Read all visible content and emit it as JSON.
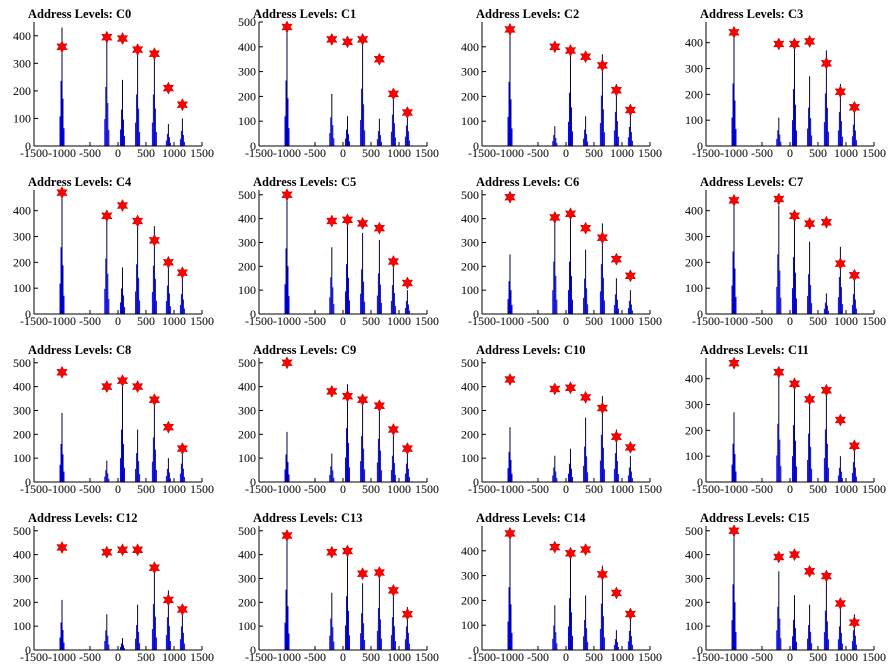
{
  "colors": {
    "bar": "#0000ff",
    "bar_dark": "#00003a",
    "marker": "#ff0000",
    "axis": "#000000"
  },
  "chart_data": [
    {
      "type": "bar",
      "title": "Address Levels: C0",
      "xlabel": "",
      "ylabel": "",
      "xlim": [
        -1500,
        1500
      ],
      "ylim": [
        0,
        450
      ],
      "xticks": [
        "-1500",
        "-1000",
        "-500",
        "0",
        "500",
        "1000",
        "1500"
      ],
      "yticks": [
        "0",
        "100",
        "200",
        "300",
        "400"
      ],
      "groups": [
        {
          "x": -1000,
          "peak": 430,
          "marker": 360
        },
        {
          "x": -200,
          "peak": 390,
          "marker": 395
        },
        {
          "x": 80,
          "peak": 240,
          "marker": 390
        },
        {
          "x": 350,
          "peak": 340,
          "marker": 350
        },
        {
          "x": 650,
          "peak": 340,
          "marker": 335
        },
        {
          "x": 900,
          "peak": 80,
          "marker": 210
        },
        {
          "x": 1150,
          "peak": 100,
          "marker": 150
        }
      ]
    },
    {
      "type": "bar",
      "title": "Address Levels: C1",
      "xlabel": "",
      "ylabel": "",
      "xlim": [
        -1500,
        1500
      ],
      "ylim": [
        0,
        500
      ],
      "xticks": [
        "-1500",
        "-1000",
        "-500",
        "0",
        "500",
        "1000",
        "1500"
      ],
      "yticks": [
        "0",
        "100",
        "200",
        "300",
        "400",
        "500"
      ],
      "groups": [
        {
          "x": -1000,
          "peak": 480,
          "marker": 480
        },
        {
          "x": -200,
          "peak": 210,
          "marker": 430
        },
        {
          "x": 80,
          "peak": 120,
          "marker": 420
        },
        {
          "x": 350,
          "peak": 420,
          "marker": 430
        },
        {
          "x": 650,
          "peak": 110,
          "marker": 350
        },
        {
          "x": 900,
          "peak": 230,
          "marker": 210
        },
        {
          "x": 1150,
          "peak": 150,
          "marker": 135
        }
      ]
    },
    {
      "type": "bar",
      "title": "Address Levels: C2",
      "xlabel": "",
      "ylabel": "",
      "xlim": [
        -1500,
        1500
      ],
      "ylim": [
        0,
        500
      ],
      "xticks": [
        "-1500",
        "-1000",
        "-500",
        "0",
        "500",
        "1000",
        "1500"
      ],
      "yticks": [
        "0",
        "100",
        "200",
        "300",
        "400"
      ],
      "groups": [
        {
          "x": -1000,
          "peak": 470,
          "marker": 470
        },
        {
          "x": -200,
          "peak": 80,
          "marker": 400
        },
        {
          "x": 80,
          "peak": 390,
          "marker": 385
        },
        {
          "x": 350,
          "peak": 120,
          "marker": 360
        },
        {
          "x": 650,
          "peak": 370,
          "marker": 325
        },
        {
          "x": 900,
          "peak": 250,
          "marker": 225
        },
        {
          "x": 1150,
          "peak": 140,
          "marker": 145
        }
      ]
    },
    {
      "type": "bar",
      "title": "Address Levels: C3",
      "xlabel": "",
      "ylabel": "",
      "xlim": [
        -1500,
        1500
      ],
      "ylim": [
        0,
        480
      ],
      "xticks": [
        "-1500",
        "-1000",
        "-500",
        "0",
        "500",
        "1000",
        "1500"
      ],
      "yticks": [
        "0",
        "100",
        "200",
        "300",
        "400"
      ],
      "groups": [
        {
          "x": -1000,
          "peak": 440,
          "marker": 440
        },
        {
          "x": -200,
          "peak": 110,
          "marker": 395
        },
        {
          "x": 80,
          "peak": 400,
          "marker": 395
        },
        {
          "x": 350,
          "peak": 270,
          "marker": 405
        },
        {
          "x": 650,
          "peak": 370,
          "marker": 320
        },
        {
          "x": 900,
          "peak": 240,
          "marker": 210
        },
        {
          "x": 1150,
          "peak": 150,
          "marker": 150
        }
      ]
    },
    {
      "type": "bar",
      "title": "Address Levels: C4",
      "xlabel": "",
      "ylabel": "",
      "xlim": [
        -1500,
        1500
      ],
      "ylim": [
        0,
        480
      ],
      "xticks": [
        "-1500",
        "-1000",
        "-500",
        "0",
        "500",
        "1000",
        "1500"
      ],
      "yticks": [
        "0",
        "100",
        "200",
        "300",
        "400"
      ],
      "groups": [
        {
          "x": -1000,
          "peak": 470,
          "marker": 470
        },
        {
          "x": -200,
          "peak": 390,
          "marker": 380
        },
        {
          "x": 80,
          "peak": 180,
          "marker": 420
        },
        {
          "x": 350,
          "peak": 350,
          "marker": 360
        },
        {
          "x": 650,
          "peak": 340,
          "marker": 285
        },
        {
          "x": 900,
          "peak": 200,
          "marker": 200
        },
        {
          "x": 1150,
          "peak": 140,
          "marker": 160
        }
      ]
    },
    {
      "type": "bar",
      "title": "Address Levels: C5",
      "xlabel": "",
      "ylabel": "",
      "xlim": [
        -1500,
        1500
      ],
      "ylim": [
        0,
        520
      ],
      "xticks": [
        "-1500",
        "-1000",
        "-500",
        "0",
        "500",
        "1000",
        "1500"
      ],
      "yticks": [
        "0",
        "100",
        "200",
        "300",
        "400",
        "500"
      ],
      "groups": [
        {
          "x": -1000,
          "peak": 500,
          "marker": 500
        },
        {
          "x": -200,
          "peak": 280,
          "marker": 390
        },
        {
          "x": 80,
          "peak": 380,
          "marker": 395
        },
        {
          "x": 350,
          "peak": 340,
          "marker": 380
        },
        {
          "x": 650,
          "peak": 310,
          "marker": 360
        },
        {
          "x": 900,
          "peak": 220,
          "marker": 220
        },
        {
          "x": 1150,
          "peak": 100,
          "marker": 130
        }
      ]
    },
    {
      "type": "bar",
      "title": "Address Levels: C6",
      "xlabel": "",
      "ylabel": "",
      "xlim": [
        -1500,
        1500
      ],
      "ylim": [
        0,
        520
      ],
      "xticks": [
        "-1500",
        "-1000",
        "-500",
        "0",
        "500",
        "1000",
        "1500"
      ],
      "yticks": [
        "0",
        "100",
        "200",
        "300",
        "400",
        "500"
      ],
      "groups": [
        {
          "x": -1000,
          "peak": 250,
          "marker": 490
        },
        {
          "x": -200,
          "peak": 400,
          "marker": 405
        },
        {
          "x": 80,
          "peak": 400,
          "marker": 420
        },
        {
          "x": 350,
          "peak": 270,
          "marker": 360
        },
        {
          "x": 650,
          "peak": 380,
          "marker": 320
        },
        {
          "x": 900,
          "peak": 150,
          "marker": 230
        },
        {
          "x": 1150,
          "peak": 100,
          "marker": 160
        }
      ]
    },
    {
      "type": "bar",
      "title": "Address Levels: C7",
      "xlabel": "",
      "ylabel": "",
      "xlim": [
        -1500,
        1500
      ],
      "ylim": [
        0,
        480
      ],
      "xticks": [
        "-1500",
        "-1000",
        "-500",
        "0",
        "500",
        "1000",
        "1500"
      ],
      "yticks": [
        "0",
        "100",
        "200",
        "300",
        "400"
      ],
      "groups": [
        {
          "x": -1000,
          "peak": 440,
          "marker": 440
        },
        {
          "x": -200,
          "peak": 420,
          "marker": 445
        },
        {
          "x": 80,
          "peak": 400,
          "marker": 380
        },
        {
          "x": 350,
          "peak": 280,
          "marker": 350
        },
        {
          "x": 650,
          "peak": 80,
          "marker": 355
        },
        {
          "x": 900,
          "peak": 260,
          "marker": 195
        },
        {
          "x": 1150,
          "peak": 140,
          "marker": 150
        }
      ]
    },
    {
      "type": "bar",
      "title": "Address Levels: C8",
      "xlabel": "",
      "ylabel": "",
      "xlim": [
        -1500,
        1500
      ],
      "ylim": [
        0,
        520
      ],
      "xticks": [
        "-1500",
        "-1000",
        "-500",
        "0",
        "500",
        "1000",
        "1500"
      ],
      "yticks": [
        "0",
        "100",
        "200",
        "300",
        "400",
        "500"
      ],
      "groups": [
        {
          "x": -1000,
          "peak": 290,
          "marker": 460
        },
        {
          "x": -200,
          "peak": 90,
          "marker": 400
        },
        {
          "x": 80,
          "peak": 400,
          "marker": 425
        },
        {
          "x": 350,
          "peak": 220,
          "marker": 400
        },
        {
          "x": 650,
          "peak": 340,
          "marker": 345
        },
        {
          "x": 900,
          "peak": 100,
          "marker": 230
        },
        {
          "x": 1150,
          "peak": 140,
          "marker": 140
        }
      ]
    },
    {
      "type": "bar",
      "title": "Address Levels: C9",
      "xlabel": "",
      "ylabel": "",
      "xlim": [
        -1500,
        1500
      ],
      "ylim": [
        0,
        520
      ],
      "xticks": [
        "-1500",
        "-1000",
        "-500",
        "0",
        "500",
        "1000",
        "1500"
      ],
      "yticks": [
        "0",
        "100",
        "200",
        "300",
        "400",
        "500"
      ],
      "groups": [
        {
          "x": -1000,
          "peak": 210,
          "marker": 500
        },
        {
          "x": -200,
          "peak": 120,
          "marker": 380
        },
        {
          "x": 80,
          "peak": 410,
          "marker": 360
        },
        {
          "x": 350,
          "peak": 350,
          "marker": 345
        },
        {
          "x": 650,
          "peak": 330,
          "marker": 320
        },
        {
          "x": 900,
          "peak": 200,
          "marker": 220
        },
        {
          "x": 1150,
          "peak": 140,
          "marker": 140
        }
      ]
    },
    {
      "type": "bar",
      "title": "Address Levels: C10",
      "xlabel": "",
      "ylabel": "",
      "xlim": [
        -1500,
        1500
      ],
      "ylim": [
        0,
        520
      ],
      "xticks": [
        "-1500",
        "-1000",
        "-500",
        "0",
        "500",
        "1000",
        "1500"
      ],
      "yticks": [
        "0",
        "100",
        "200",
        "300",
        "400",
        "500"
      ],
      "groups": [
        {
          "x": -1000,
          "peak": 230,
          "marker": 430
        },
        {
          "x": -200,
          "peak": 110,
          "marker": 390
        },
        {
          "x": 80,
          "peak": 140,
          "marker": 395
        },
        {
          "x": 350,
          "peak": 270,
          "marker": 355
        },
        {
          "x": 650,
          "peak": 360,
          "marker": 310
        },
        {
          "x": 900,
          "peak": 220,
          "marker": 190
        },
        {
          "x": 1150,
          "peak": 110,
          "marker": 145
        }
      ]
    },
    {
      "type": "bar",
      "title": "Address Levels: C11",
      "xlabel": "",
      "ylabel": "",
      "xlim": [
        -1500,
        1500
      ],
      "ylim": [
        0,
        480
      ],
      "xticks": [
        "-1500",
        "-1000",
        "-500",
        "0",
        "500",
        "1000",
        "1500"
      ],
      "yticks": [
        "0",
        "100",
        "200",
        "300",
        "400"
      ],
      "groups": [
        {
          "x": -1000,
          "peak": 270,
          "marker": 460
        },
        {
          "x": -200,
          "peak": 410,
          "marker": 425
        },
        {
          "x": 80,
          "peak": 400,
          "marker": 380
        },
        {
          "x": 350,
          "peak": 340,
          "marker": 320
        },
        {
          "x": 650,
          "peak": 370,
          "marker": 355
        },
        {
          "x": 900,
          "peak": 100,
          "marker": 240
        },
        {
          "x": 1150,
          "peak": 140,
          "marker": 140
        }
      ]
    },
    {
      "type": "bar",
      "title": "Address Levels: C12",
      "xlabel": "",
      "ylabel": "",
      "xlim": [
        -1500,
        1500
      ],
      "ylim": [
        0,
        520
      ],
      "xticks": [
        "-1500",
        "-1000",
        "-500",
        "0",
        "500",
        "1000",
        "1500"
      ],
      "yticks": [
        "0",
        "100",
        "200",
        "300",
        "400",
        "500"
      ],
      "groups": [
        {
          "x": -1000,
          "peak": 210,
          "marker": 430
        },
        {
          "x": -200,
          "peak": 150,
          "marker": 410
        },
        {
          "x": 80,
          "peak": 50,
          "marker": 420
        },
        {
          "x": 350,
          "peak": 190,
          "marker": 420
        },
        {
          "x": 650,
          "peak": 350,
          "marker": 345
        },
        {
          "x": 900,
          "peak": 250,
          "marker": 210
        },
        {
          "x": 1150,
          "peak": 180,
          "marker": 170
        }
      ]
    },
    {
      "type": "bar",
      "title": "Address Levels: C13",
      "xlabel": "",
      "ylabel": "",
      "xlim": [
        -1500,
        1500
      ],
      "ylim": [
        0,
        520
      ],
      "xticks": [
        "-1500",
        "-1000",
        "-500",
        "0",
        "500",
        "1000",
        "1500"
      ],
      "yticks": [
        "0",
        "100",
        "200",
        "300",
        "400",
        "500"
      ],
      "groups": [
        {
          "x": -1000,
          "peak": 460,
          "marker": 480
        },
        {
          "x": -200,
          "peak": 240,
          "marker": 410
        },
        {
          "x": 80,
          "peak": 410,
          "marker": 415
        },
        {
          "x": 350,
          "peak": 280,
          "marker": 320
        },
        {
          "x": 650,
          "peak": 320,
          "marker": 325
        },
        {
          "x": 900,
          "peak": 250,
          "marker": 250
        },
        {
          "x": 1150,
          "peak": 180,
          "marker": 150
        }
      ]
    },
    {
      "type": "bar",
      "title": "Address Levels: C14",
      "xlabel": "",
      "ylabel": "",
      "xlim": [
        -1500,
        1500
      ],
      "ylim": [
        0,
        500
      ],
      "xticks": [
        "-1500",
        "-1000",
        "-500",
        "0",
        "500",
        "1000",
        "1500"
      ],
      "yticks": [
        "0",
        "100",
        "200",
        "300",
        "400"
      ],
      "groups": [
        {
          "x": -1000,
          "peak": 460,
          "marker": 470
        },
        {
          "x": -200,
          "peak": 180,
          "marker": 415
        },
        {
          "x": 80,
          "peak": 380,
          "marker": 390
        },
        {
          "x": 350,
          "peak": 220,
          "marker": 405
        },
        {
          "x": 650,
          "peak": 340,
          "marker": 305
        },
        {
          "x": 900,
          "peak": 80,
          "marker": 230
        },
        {
          "x": 1150,
          "peak": 140,
          "marker": 145
        }
      ]
    },
    {
      "type": "bar",
      "title": "Address Levels: C15",
      "xlabel": "",
      "ylabel": "",
      "xlim": [
        -1500,
        1500
      ],
      "ylim": [
        0,
        520
      ],
      "xticks": [
        "-1500",
        "-1000",
        "-500",
        "0",
        "500",
        "1000",
        "1500"
      ],
      "yticks": [
        "0",
        "100",
        "200",
        "300",
        "400",
        "500"
      ],
      "groups": [
        {
          "x": -1000,
          "peak": 500,
          "marker": 500
        },
        {
          "x": -200,
          "peak": 330,
          "marker": 390
        },
        {
          "x": 80,
          "peak": 230,
          "marker": 400
        },
        {
          "x": 350,
          "peak": 190,
          "marker": 330
        },
        {
          "x": 650,
          "peak": 300,
          "marker": 310
        },
        {
          "x": 900,
          "peak": 180,
          "marker": 195
        },
        {
          "x": 1150,
          "peak": 150,
          "marker": 115
        }
      ]
    }
  ]
}
